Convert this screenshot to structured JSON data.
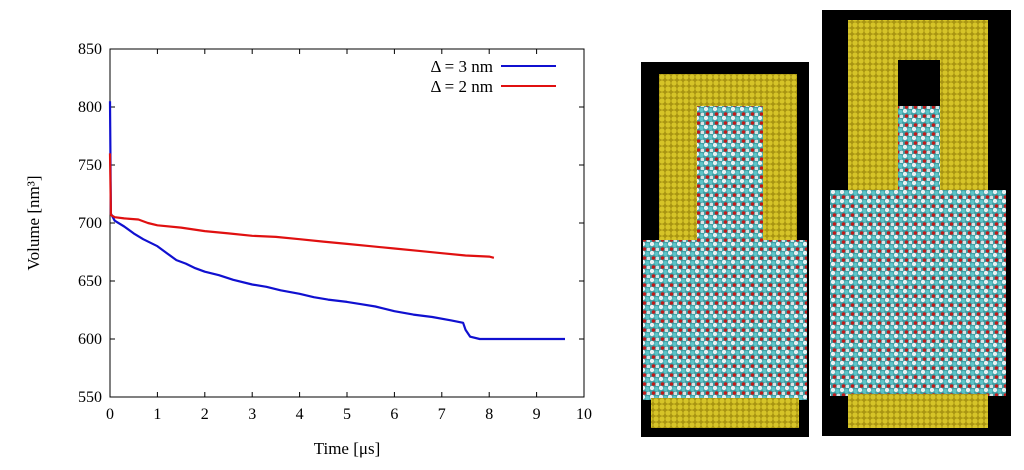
{
  "chart_data": {
    "type": "line",
    "xlabel": "Time [μs]",
    "ylabel": "Volume [nm³]",
    "xlim": [
      0,
      10
    ],
    "ylim": [
      550,
      850
    ],
    "xticks": [
      "0",
      "1",
      "2",
      "3",
      "4",
      "5",
      "6",
      "7",
      "8",
      "9",
      "10"
    ],
    "yticks": [
      "550",
      "600",
      "650",
      "700",
      "750",
      "800",
      "850"
    ],
    "grid": false,
    "legend_position": "top-right",
    "series": [
      {
        "name": "Δ = 3 nm",
        "color": "#1010d0",
        "x": [
          0,
          0.02,
          0.1,
          0.3,
          0.5,
          0.7,
          1.0,
          1.2,
          1.4,
          1.6,
          1.8,
          2.0,
          2.3,
          2.6,
          3.0,
          3.3,
          3.6,
          4.0,
          4.3,
          4.6,
          5.0,
          5.3,
          5.6,
          6.0,
          6.4,
          6.8,
          7.2,
          7.45,
          7.5,
          7.6,
          7.8,
          8.0,
          8.5,
          9.0,
          9.5,
          9.6
        ],
        "y": [
          805,
          708,
          702,
          697,
          691,
          686,
          680,
          674,
          668,
          665,
          661,
          658,
          655,
          651,
          647,
          645,
          642,
          639,
          636,
          634,
          632,
          630,
          628,
          624,
          621,
          619,
          616,
          614,
          608,
          602,
          600,
          600,
          600,
          600,
          600,
          600
        ]
      },
      {
        "name": "Δ = 2 nm",
        "color": "#e01010",
        "x": [
          0,
          0.02,
          0.1,
          0.3,
          0.6,
          0.8,
          1.0,
          1.5,
          2.0,
          2.5,
          3.0,
          3.5,
          4.0,
          4.5,
          5.0,
          5.5,
          6.0,
          6.5,
          7.0,
          7.5,
          8.0,
          8.1
        ],
        "y": [
          760,
          707,
          705,
          704,
          703,
          700,
          698,
          696,
          693,
          691,
          689,
          688,
          686,
          684,
          682,
          680,
          678,
          676,
          674,
          672,
          671,
          670
        ]
      }
    ]
  },
  "images": {
    "left": {
      "name": "simulation-snapshot-delta-3nm",
      "colors": {
        "background": "#000000",
        "wall": "#c8b81e",
        "carbon": "#4fb8bd",
        "hydrogen": "#e8f0f2",
        "oxygen": "#c01a1a"
      }
    },
    "right": {
      "name": "simulation-snapshot-delta-2nm",
      "colors": {
        "background": "#000000",
        "wall": "#c8b81e",
        "carbon": "#4fb8bd",
        "hydrogen": "#e8f0f2",
        "oxygen": "#c01a1a"
      }
    }
  }
}
